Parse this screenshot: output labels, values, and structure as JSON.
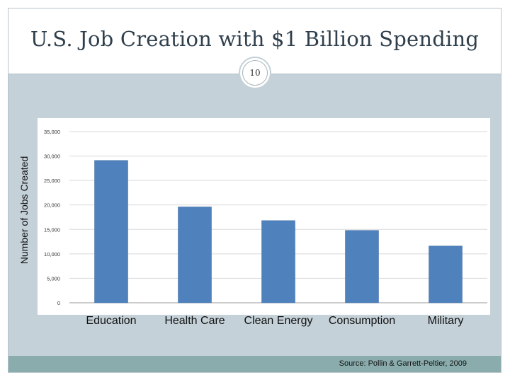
{
  "slide": {
    "title": "U.S. Job Creation with $1 Billion Spending",
    "slide_number": "10",
    "source": "Source:  Pollin & Garrett-Peltier, 2009",
    "colors": {
      "background_panel": "#c5d1d8",
      "footer": "#8aacac",
      "bar": "#4f81bd"
    }
  },
  "chart_data": {
    "type": "bar",
    "title": "",
    "xlabel": "",
    "ylabel": "Number of Jobs Created",
    "categories": [
      "Education",
      "Health Care",
      "Clean Energy",
      "Consumption",
      "Military"
    ],
    "values": [
      29100,
      19600,
      16800,
      14800,
      11600
    ],
    "ylim": [
      0,
      35000
    ],
    "yticks": [
      0,
      5000,
      10000,
      15000,
      20000,
      25000,
      30000,
      35000
    ],
    "ytick_labels": [
      "0",
      "5,000",
      "10,000",
      "15,000",
      "20,000",
      "25,000",
      "30,000",
      "35,000"
    ],
    "grid": true,
    "legend": "none"
  }
}
